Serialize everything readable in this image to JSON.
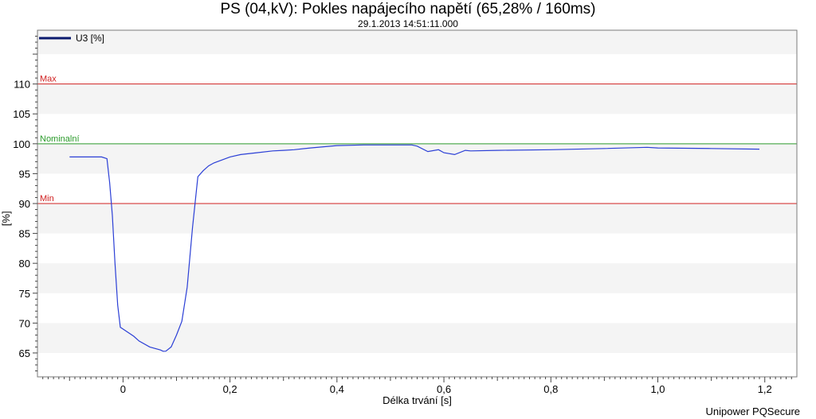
{
  "header": {
    "title": "PS (04,kV): Pokles napájecího napětí (65,28% / 160ms)",
    "subtitle": "29.1.2013 14:51:11.000"
  },
  "footer": {
    "text": "Unipower PQSecure"
  },
  "chart_data": {
    "type": "line",
    "title": "PS (04,kV): Pokles napájecího napětí (65,28% / 160ms)",
    "subtitle": "29.1.2013 14:51:11.000",
    "xlabel": "Délka trvání [s]",
    "ylabel": "[%]",
    "xlim": [
      -0.16,
      1.26
    ],
    "ylim": [
      61,
      119
    ],
    "x_ticks": [
      0,
      0.2,
      0.4,
      0.6,
      0.8,
      1.0,
      1.2
    ],
    "x_tick_labels": [
      "0",
      "0,2",
      "0,4",
      "0,6",
      "0,8",
      "1,0",
      "1,2"
    ],
    "y_ticks": [
      65,
      70,
      75,
      80,
      85,
      90,
      95,
      100,
      105,
      110
    ],
    "y_tick_labels": [
      "65",
      "70",
      "75",
      "80",
      "85",
      "90",
      "95",
      "100",
      "105",
      "110"
    ],
    "grid": "horizontal alternating bands",
    "legend": {
      "position": "top-left",
      "entries": [
        "U3 [%]"
      ]
    },
    "reference_lines": [
      {
        "name": "Max",
        "value": 110,
        "color": "#d02020"
      },
      {
        "name": "Nominalní",
        "value": 100,
        "color": "#2a9a2a"
      },
      {
        "name": "Min",
        "value": 90,
        "color": "#d02020"
      }
    ],
    "series": [
      {
        "name": "U3 [%]",
        "color": "#2b3fd6",
        "legend_color": "#0b1a6e",
        "x": [
          -0.1,
          -0.08,
          -0.06,
          -0.04,
          -0.03,
          -0.025,
          -0.02,
          -0.015,
          -0.01,
          -0.005,
          0.0,
          0.02,
          0.03,
          0.05,
          0.07,
          0.075,
          0.08,
          0.09,
          0.1,
          0.11,
          0.12,
          0.13,
          0.14,
          0.15,
          0.16,
          0.17,
          0.2,
          0.22,
          0.25,
          0.28,
          0.3,
          0.32,
          0.35,
          0.4,
          0.45,
          0.5,
          0.54,
          0.55,
          0.57,
          0.59,
          0.6,
          0.62,
          0.64,
          0.65,
          0.7,
          0.8,
          0.9,
          0.98,
          1.0,
          1.1,
          1.19
        ],
        "values": [
          97.8,
          97.8,
          97.8,
          97.8,
          97.5,
          93.5,
          88,
          80,
          73,
          69.3,
          69.0,
          67.8,
          67.0,
          66.0,
          65.5,
          65.28,
          65.3,
          66.0,
          68.0,
          70.3,
          76,
          86,
          94.5,
          95.5,
          96.3,
          96.8,
          97.8,
          98.2,
          98.5,
          98.8,
          98.9,
          99.0,
          99.3,
          99.7,
          99.8,
          99.8,
          99.8,
          99.6,
          98.7,
          99.0,
          98.5,
          98.2,
          98.9,
          98.8,
          98.9,
          99.0,
          99.2,
          99.4,
          99.3,
          99.2,
          99.1
        ]
      }
    ]
  }
}
